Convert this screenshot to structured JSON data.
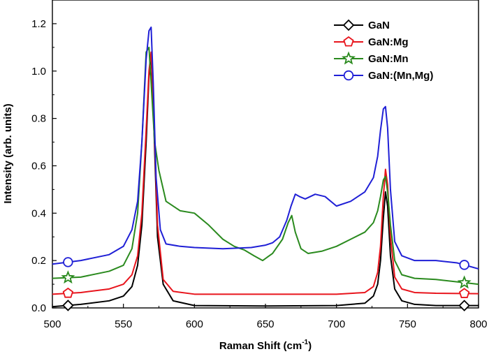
{
  "chart_data": {
    "type": "line",
    "xlabel": "Raman Shift (cm",
    "xlabel_sup": "-1",
    "xlabel_tail": ")",
    "ylabel": "Intensity (arb. units)",
    "xlim": [
      500,
      800
    ],
    "ylim": [
      0.0,
      1.3
    ],
    "xticks": [
      500,
      550,
      600,
      650,
      700,
      750,
      800
    ],
    "yticks": [
      "0.0",
      "0.2",
      "0.4",
      "0.6",
      "0.8",
      "1.0",
      "1.2"
    ],
    "legend_position": "top-right",
    "grid": false,
    "series": [
      {
        "name": "GaN",
        "color": "#000000",
        "marker": "diamond",
        "marker_x": [
          511,
          790
        ],
        "x": [
          500,
          520,
          540,
          550,
          556,
          560,
          563,
          566,
          568,
          569.5,
          571,
          574,
          578,
          585,
          600,
          650,
          700,
          720,
          726,
          729,
          731,
          733,
          734.5,
          736,
          738,
          741,
          746,
          755,
          770,
          800
        ],
        "y": [
          0.005,
          0.015,
          0.03,
          0.05,
          0.09,
          0.18,
          0.35,
          0.7,
          0.98,
          1.07,
          0.85,
          0.3,
          0.1,
          0.03,
          0.01,
          0.008,
          0.01,
          0.02,
          0.05,
          0.1,
          0.2,
          0.38,
          0.49,
          0.43,
          0.22,
          0.08,
          0.03,
          0.015,
          0.01,
          0.01
        ]
      },
      {
        "name": "GaN:Mg",
        "color": "#e8141c",
        "marker": "pentagon",
        "marker_x": [
          511,
          790
        ],
        "x": [
          500,
          520,
          540,
          550,
          556,
          560,
          563,
          566,
          568,
          569.5,
          571,
          574,
          578,
          585,
          600,
          650,
          700,
          720,
          726,
          729,
          731,
          733,
          734.5,
          736,
          738,
          741,
          746,
          755,
          770,
          800
        ],
        "y": [
          0.058,
          0.065,
          0.08,
          0.1,
          0.14,
          0.22,
          0.4,
          0.75,
          1.0,
          1.08,
          0.88,
          0.35,
          0.12,
          0.07,
          0.058,
          0.058,
          0.058,
          0.065,
          0.09,
          0.15,
          0.26,
          0.47,
          0.585,
          0.52,
          0.3,
          0.13,
          0.08,
          0.065,
          0.062,
          0.06
        ]
      },
      {
        "name": "GaN:Mn",
        "color": "#2a8a1e",
        "marker": "star",
        "marker_x": [
          511,
          790
        ],
        "x": [
          500,
          520,
          540,
          550,
          556,
          560,
          563,
          566,
          568,
          570,
          572,
          575,
          580,
          590,
          600,
          610,
          620,
          628,
          635,
          642,
          648,
          655,
          662,
          666,
          668.5,
          671,
          675,
          680,
          690,
          700,
          710,
          720,
          726,
          729,
          731,
          733,
          734.5,
          736,
          738,
          741,
          746,
          755,
          770,
          800
        ],
        "y": [
          0.125,
          0.13,
          0.155,
          0.18,
          0.25,
          0.4,
          0.7,
          1.08,
          1.1,
          0.9,
          0.7,
          0.58,
          0.45,
          0.41,
          0.4,
          0.35,
          0.29,
          0.26,
          0.245,
          0.22,
          0.2,
          0.23,
          0.29,
          0.36,
          0.39,
          0.32,
          0.25,
          0.23,
          0.24,
          0.26,
          0.29,
          0.32,
          0.36,
          0.41,
          0.47,
          0.54,
          0.555,
          0.49,
          0.35,
          0.2,
          0.14,
          0.125,
          0.12,
          0.1
        ]
      },
      {
        "name": "GaN:(Mn,Mg)",
        "color": "#1f1fd6",
        "marker": "circle",
        "marker_x": [
          511,
          790
        ],
        "x": [
          500,
          520,
          540,
          550,
          556,
          560,
          563,
          566,
          568,
          569.5,
          571,
          573,
          576,
          580,
          590,
          600,
          620,
          640,
          650,
          655,
          660,
          665,
          668,
          671,
          674,
          678,
          685,
          692,
          700,
          710,
          720,
          726,
          729,
          731,
          733,
          734.5,
          736,
          738,
          741,
          746,
          755,
          770,
          785,
          800
        ],
        "y": [
          0.185,
          0.2,
          0.225,
          0.26,
          0.33,
          0.45,
          0.7,
          1.05,
          1.17,
          1.185,
          0.95,
          0.55,
          0.33,
          0.27,
          0.26,
          0.255,
          0.25,
          0.255,
          0.265,
          0.275,
          0.3,
          0.37,
          0.43,
          0.48,
          0.47,
          0.46,
          0.48,
          0.47,
          0.43,
          0.45,
          0.49,
          0.55,
          0.64,
          0.75,
          0.84,
          0.85,
          0.76,
          0.5,
          0.28,
          0.22,
          0.2,
          0.2,
          0.19,
          0.165
        ]
      }
    ]
  }
}
